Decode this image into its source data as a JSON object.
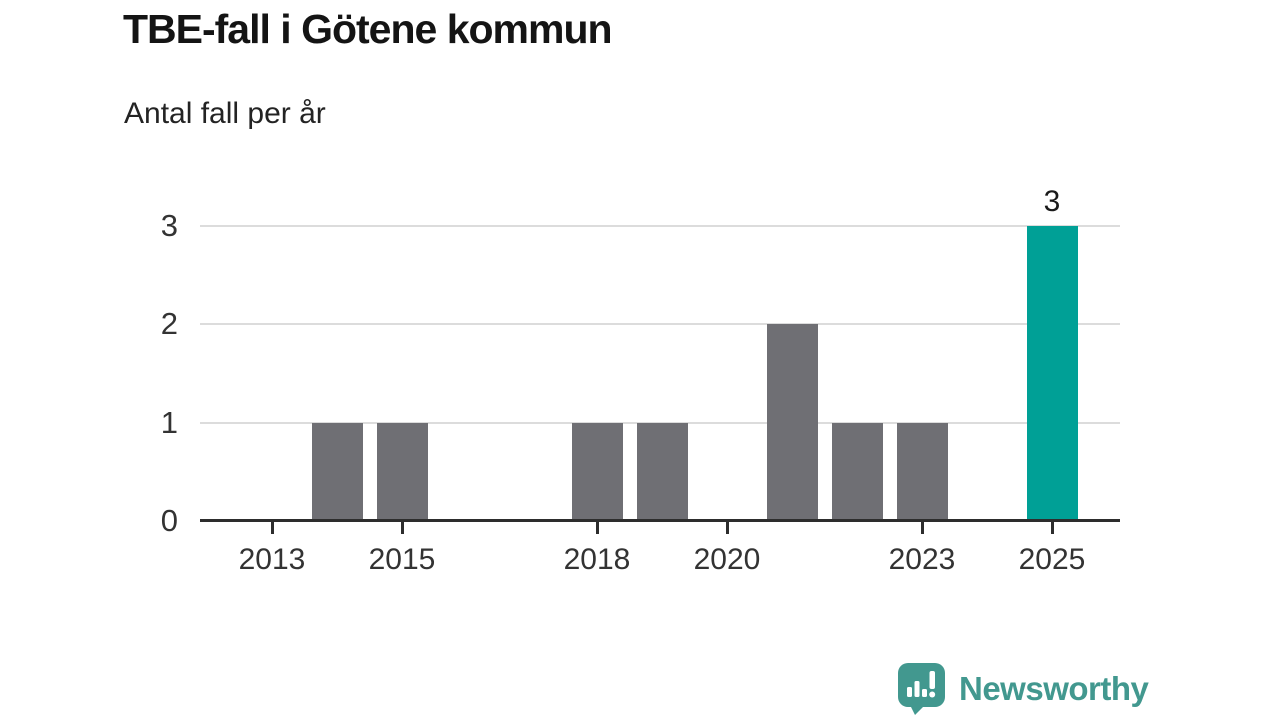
{
  "chart_data": {
    "type": "bar",
    "title": "TBE-fall i Götene kommun",
    "subtitle": "Antal fall per år",
    "categories": [
      2013,
      2014,
      2015,
      2016,
      2017,
      2018,
      2019,
      2020,
      2021,
      2022,
      2023,
      2024,
      2025
    ],
    "values": [
      0,
      1,
      1,
      0,
      0,
      1,
      1,
      0,
      2,
      1,
      1,
      0,
      3
    ],
    "x_tick_labels": [
      "2013",
      "2015",
      "2018",
      "2020",
      "2023",
      "2025"
    ],
    "y_ticks": [
      0,
      1,
      2,
      3
    ],
    "ylim": [
      0,
      3
    ],
    "grid": "horizontal",
    "legend": "none",
    "bar_color": "#6f6f74",
    "highlight_color": "#00a096",
    "highlight_category": 2025,
    "data_labels": [
      {
        "category": 2025,
        "label": "3"
      }
    ]
  },
  "branding": {
    "logo_text": "Newsworthy",
    "logo_color": "#42988f",
    "logo_icon": "speech-bubble-bar-chart-icon"
  }
}
